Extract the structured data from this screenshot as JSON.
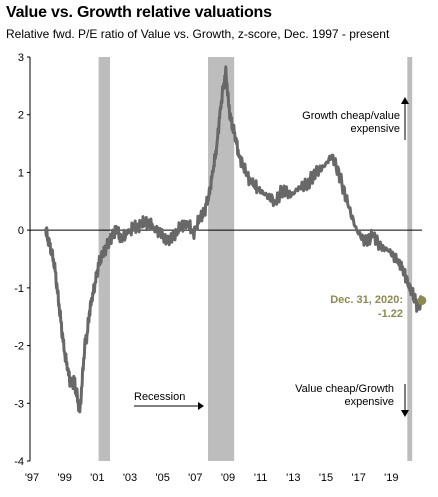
{
  "header": {
    "title": "Value vs. Growth relative valuations",
    "subtitle": "Relative fwd. P/E ratio of Value vs. Growth, z-score, Dec. 1997 - present"
  },
  "colors": {
    "line": "#686868",
    "recession": "#bdbdbd",
    "end_marker": "#8c8a4f",
    "axis": "#000000"
  },
  "chart_data": {
    "type": "line",
    "title": "Value vs. Growth relative valuations",
    "subtitle": "Relative fwd. P/E ratio of Value vs. Growth, z-score, Dec. 1997 - present",
    "xlabel": "",
    "ylabel": "",
    "ylim": [
      -4,
      3
    ],
    "y_ticks": [
      3,
      2,
      1,
      0,
      -1,
      -2,
      -3,
      -4
    ],
    "x_tick_labels": [
      "'97",
      "'99",
      "'01",
      "'03",
      "'05",
      "'07",
      "'09",
      "'11",
      "'13",
      "'15",
      "'17",
      "'19"
    ],
    "x_tick_years": [
      1997,
      1999,
      2001,
      2003,
      2005,
      2007,
      2009,
      2011,
      2013,
      2015,
      2017,
      2019
    ],
    "xlim": [
      1997.0,
      2021.0
    ],
    "grid": false,
    "recessions": [
      {
        "start": 2001.2,
        "end": 2001.9
      },
      {
        "start": 2007.9,
        "end": 2009.5
      },
      {
        "start": 2020.1,
        "end": 2020.4
      }
    ],
    "series": [
      {
        "x": [
          1997.95,
          1998.1,
          1998.3,
          1998.5,
          1998.7,
          1998.9,
          1999.1,
          1999.3,
          1999.5,
          1999.7,
          1999.9,
          2000.05,
          2000.2,
          2000.35,
          2000.5,
          2000.65,
          2000.8,
          2001.0,
          2001.2,
          2001.45,
          2001.7,
          2002.0,
          2002.3,
          2002.6,
          2003.0,
          2003.4,
          2003.8,
          2004.2,
          2004.6,
          2005.0,
          2005.4,
          2005.8,
          2006.2,
          2006.6,
          2007.0,
          2007.4,
          2007.7,
          2007.95,
          2008.2,
          2008.45,
          2008.65,
          2008.85,
          2009.0,
          2009.15,
          2009.3,
          2009.5,
          2009.8,
          2010.2,
          2010.6,
          2011.0,
          2011.5,
          2012.0,
          2012.5,
          2013.0,
          2013.5,
          2014.0,
          2014.5,
          2015.0,
          2015.5,
          2016.0,
          2016.5,
          2017.0,
          2017.5,
          2018.0,
          2018.5,
          2019.0,
          2019.5,
          2019.9,
          2020.2,
          2020.5,
          2020.75,
          2020.99
        ],
        "values": [
          0.0,
          -0.15,
          -0.35,
          -0.6,
          -1.1,
          -1.6,
          -2.1,
          -2.4,
          -2.7,
          -2.6,
          -2.9,
          -3.15,
          -2.6,
          -2.0,
          -1.8,
          -1.4,
          -1.2,
          -0.9,
          -0.6,
          -0.4,
          -0.3,
          -0.1,
          0.0,
          -0.15,
          -0.05,
          0.05,
          0.1,
          0.15,
          0.05,
          -0.05,
          -0.2,
          -0.1,
          0.05,
          0.15,
          -0.05,
          0.2,
          0.35,
          0.6,
          1.0,
          1.5,
          2.1,
          2.5,
          2.75,
          2.2,
          1.9,
          1.7,
          1.3,
          1.0,
          0.8,
          0.7,
          0.6,
          0.5,
          0.7,
          0.6,
          0.75,
          0.8,
          1.0,
          1.1,
          1.3,
          0.9,
          0.4,
          0.0,
          -0.2,
          -0.1,
          -0.3,
          -0.35,
          -0.55,
          -0.7,
          -1.0,
          -1.15,
          -1.35,
          -1.22
        ]
      }
    ],
    "annotations": {
      "recession_label": "Recession",
      "top_right": [
        "Growth cheap/value",
        "expensive"
      ],
      "bottom_right": [
        "Value cheap/Growth",
        "expensive"
      ],
      "end_label": [
        "Dec. 31, 2020:",
        "-1.22"
      ]
    },
    "end_point": {
      "x": 2020.99,
      "y": -1.22
    }
  }
}
